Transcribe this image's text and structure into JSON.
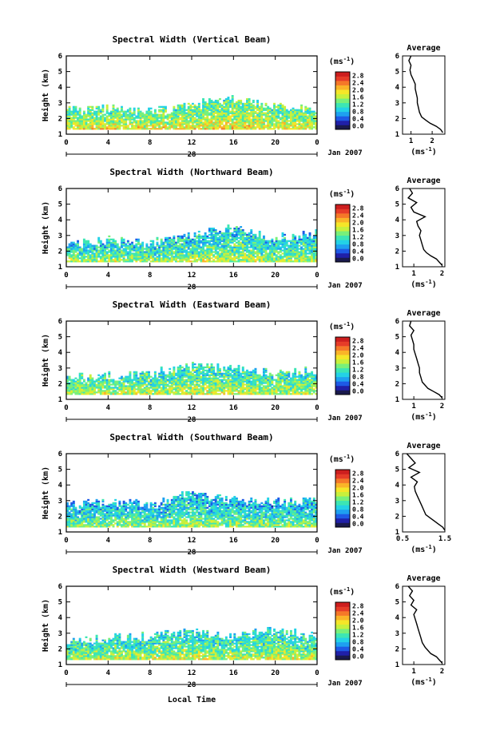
{
  "figure": {
    "xlabel": "Local Time",
    "day_label": "28",
    "month_label": "Jan 2007",
    "ylabel": "Height (km)",
    "avg_title": "Average",
    "cbar_unit": "ms",
    "cbar_unit_exp": "-1",
    "avg_xlabel": "ms",
    "avg_xlabel_exp": "-1",
    "colors": {
      "colormap": [
        "#1a1a4d",
        "#2020a8",
        "#1e5ae6",
        "#1ea0f0",
        "#23d2e6",
        "#3ce6b4",
        "#78f07a",
        "#c8f03c",
        "#f5e628",
        "#fab428",
        "#f57828",
        "#e63c28",
        "#cd1e1e"
      ],
      "axis": "#000000",
      "avg_line": "#000000"
    }
  },
  "chart_data": [
    {
      "type": "heatmap",
      "title": "Spectral Width (Vertical Beam)",
      "x_ticks": [
        "0",
        "4",
        "8",
        "12",
        "16",
        "20",
        "0"
      ],
      "y_ticks": [
        "1",
        "2",
        "3",
        "4",
        "5",
        "6"
      ],
      "xlim": [
        0,
        24
      ],
      "ylim": [
        1,
        6
      ],
      "colorbar": {
        "ticks": [
          "0.0",
          "0.4",
          "0.8",
          "1.2",
          "1.6",
          "2.0",
          "2.4",
          "2.8"
        ],
        "range": [
          0,
          2.8
        ]
      },
      "profile_mean": [
        2.2,
        2.0,
        1.8,
        1.6,
        1.5,
        1.4,
        1.35
      ],
      "max_alt": [
        2.5,
        2.6,
        2.4,
        2.8,
        3.2,
        2.7,
        2.6
      ],
      "avg_profile": {
        "title": "Average",
        "xlim": [
          0.6,
          2.6
        ],
        "x_ticks": [
          "1",
          "2"
        ],
        "y_ticks": [
          "1",
          "2",
          "3",
          "4",
          "5",
          "6"
        ],
        "x": [
          2.5,
          2.4,
          2.2,
          1.9,
          1.7,
          1.5,
          1.4,
          1.35,
          1.3,
          1.3,
          1.25,
          1.2,
          1.2,
          1.1,
          1.0,
          0.95,
          1.0,
          0.9,
          1.0
        ],
        "y": [
          1.1,
          1.3,
          1.5,
          1.7,
          1.9,
          2.1,
          2.4,
          2.7,
          3.0,
          3.3,
          3.6,
          3.9,
          4.2,
          4.5,
          4.8,
          5.1,
          5.4,
          5.7,
          6.0
        ]
      }
    },
    {
      "type": "heatmap",
      "title": "Spectral Width (Northward Beam)",
      "x_ticks": [
        "0",
        "4",
        "8",
        "12",
        "16",
        "20",
        "0"
      ],
      "y_ticks": [
        "1",
        "2",
        "3",
        "4",
        "5",
        "6"
      ],
      "xlim": [
        0,
        24
      ],
      "ylim": [
        1,
        6
      ],
      "colorbar": {
        "ticks": [
          "0.0",
          "0.4",
          "0.8",
          "1.2",
          "1.6",
          "2.0",
          "2.4",
          "2.8"
        ],
        "range": [
          0,
          2.8
        ]
      },
      "profile_mean": [
        1.9,
        1.7,
        1.5,
        1.3,
        1.2,
        1.1,
        1.0
      ],
      "max_alt": [
        2.4,
        2.7,
        2.5,
        3.0,
        3.4,
        2.8,
        3.1
      ],
      "avg_profile": {
        "title": "Average",
        "xlim": [
          0.6,
          2.1
        ],
        "x_ticks": [
          "1",
          "2"
        ],
        "y_ticks": [
          "1",
          "2",
          "3",
          "4",
          "5",
          "6"
        ],
        "x": [
          2.0,
          1.9,
          1.8,
          1.6,
          1.45,
          1.35,
          1.3,
          1.25,
          1.2,
          1.25,
          1.15,
          1.1,
          1.4,
          1.0,
          0.9,
          1.1,
          0.8,
          0.95,
          0.85
        ],
        "y": [
          1.1,
          1.3,
          1.5,
          1.7,
          1.9,
          2.1,
          2.4,
          2.7,
          3.0,
          3.3,
          3.6,
          3.9,
          4.2,
          4.5,
          4.8,
          5.1,
          5.4,
          5.7,
          6.0
        ]
      }
    },
    {
      "type": "heatmap",
      "title": "Spectral Width (Eastward Beam)",
      "x_ticks": [
        "0",
        "4",
        "8",
        "12",
        "16",
        "20",
        "0"
      ],
      "y_ticks": [
        "1",
        "2",
        "3",
        "4",
        "5",
        "6"
      ],
      "xlim": [
        0,
        24
      ],
      "ylim": [
        1,
        6
      ],
      "colorbar": {
        "ticks": [
          "0.0",
          "0.4",
          "0.8",
          "1.2",
          "1.6",
          "2.0",
          "2.4",
          "2.8"
        ],
        "range": [
          0,
          2.8
        ]
      },
      "profile_mean": [
        2.0,
        1.8,
        1.6,
        1.45,
        1.35,
        1.25,
        1.2
      ],
      "max_alt": [
        2.3,
        2.4,
        2.6,
        3.1,
        2.9,
        2.6,
        2.8
      ],
      "avg_profile": {
        "title": "Average",
        "xlim": [
          0.6,
          2.1
        ],
        "x_ticks": [
          "1",
          "2"
        ],
        "y_ticks": [
          "1",
          "2",
          "3",
          "4",
          "5",
          "6"
        ],
        "x": [
          2.0,
          1.9,
          1.7,
          1.5,
          1.4,
          1.3,
          1.25,
          1.2,
          1.2,
          1.15,
          1.1,
          1.05,
          1.0,
          1.0,
          0.95,
          0.9,
          1.0,
          0.85,
          0.9
        ],
        "y": [
          1.1,
          1.3,
          1.5,
          1.7,
          1.9,
          2.1,
          2.4,
          2.7,
          3.0,
          3.3,
          3.6,
          3.9,
          4.2,
          4.5,
          4.8,
          5.1,
          5.4,
          5.7,
          6.0
        ]
      }
    },
    {
      "type": "heatmap",
      "title": "Spectral Width (Southward Beam)",
      "x_ticks": [
        "0",
        "4",
        "8",
        "12",
        "16",
        "20",
        "0"
      ],
      "y_ticks": [
        "1",
        "2",
        "3",
        "4",
        "5",
        "6"
      ],
      "xlim": [
        0,
        24
      ],
      "ylim": [
        1,
        6
      ],
      "colorbar": {
        "ticks": [
          "0.0",
          "0.4",
          "0.8",
          "1.2",
          "1.6",
          "2.0",
          "2.4",
          "2.8"
        ],
        "range": [
          0,
          2.8
        ]
      },
      "profile_mean": [
        1.8,
        1.6,
        1.4,
        1.2,
        1.1,
        1.0,
        0.9
      ],
      "max_alt": [
        2.6,
        2.9,
        2.7,
        3.4,
        3.0,
        2.8,
        3.0
      ],
      "avg_profile": {
        "title": "Average",
        "xlim": [
          0.5,
          1.5
        ],
        "x_ticks": [
          "0.5",
          "1.5"
        ],
        "y_ticks": [
          "1",
          "2",
          "3",
          "4",
          "5",
          "6"
        ],
        "x": [
          1.5,
          1.45,
          1.35,
          1.25,
          1.15,
          1.05,
          1.0,
          0.95,
          0.9,
          0.85,
          0.8,
          0.78,
          0.85,
          0.7,
          0.9,
          0.65,
          0.8,
          0.7,
          0.6
        ],
        "y": [
          1.1,
          1.3,
          1.5,
          1.7,
          1.9,
          2.1,
          2.4,
          2.7,
          3.0,
          3.3,
          3.6,
          3.9,
          4.2,
          4.5,
          4.8,
          5.1,
          5.4,
          5.7,
          6.0
        ]
      }
    },
    {
      "type": "heatmap",
      "title": "Spectral Width (Westward Beam)",
      "x_ticks": [
        "0",
        "4",
        "8",
        "12",
        "16",
        "20",
        "0"
      ],
      "y_ticks": [
        "1",
        "2",
        "3",
        "4",
        "5",
        "6"
      ],
      "xlim": [
        0,
        24
      ],
      "ylim": [
        1,
        6
      ],
      "colorbar": {
        "ticks": [
          "0.0",
          "0.4",
          "0.8",
          "1.2",
          "1.6",
          "2.0",
          "2.4",
          "2.8"
        ],
        "range": [
          0,
          2.8
        ]
      },
      "profile_mean": [
        2.0,
        1.8,
        1.6,
        1.4,
        1.3,
        1.2,
        1.15
      ],
      "max_alt": [
        2.5,
        2.6,
        2.8,
        3.0,
        2.7,
        3.2,
        2.8
      ],
      "avg_profile": {
        "title": "Average",
        "xlim": [
          0.6,
          2.1
        ],
        "x_ticks": [
          "1",
          "2"
        ],
        "y_ticks": [
          "1",
          "2",
          "3",
          "4",
          "5",
          "6"
        ],
        "x": [
          2.0,
          1.9,
          1.8,
          1.6,
          1.5,
          1.4,
          1.3,
          1.25,
          1.2,
          1.15,
          1.1,
          1.05,
          1.0,
          1.1,
          0.9,
          1.0,
          0.85,
          0.95,
          0.8
        ],
        "y": [
          1.1,
          1.3,
          1.5,
          1.7,
          1.9,
          2.1,
          2.4,
          2.7,
          3.0,
          3.3,
          3.6,
          3.9,
          4.2,
          4.5,
          4.8,
          5.1,
          5.4,
          5.7,
          6.0
        ]
      }
    }
  ]
}
